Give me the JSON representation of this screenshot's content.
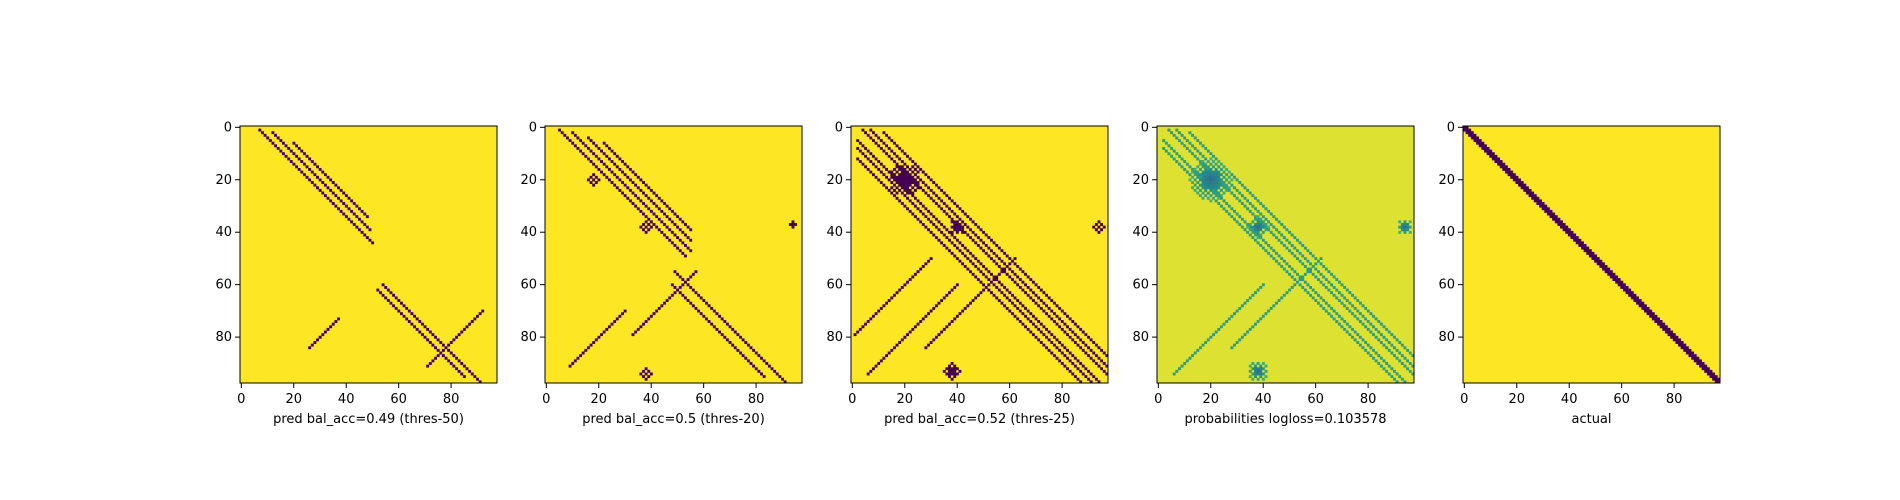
{
  "figure": {
    "background": "#ffffff",
    "colormap": "viridis",
    "color_low": "#440154",
    "color_high": "#fde725"
  },
  "chart_data": [
    {
      "type": "heatmap",
      "title": "",
      "xlabel": "pred bal_acc=0.49 (thres-50)",
      "ylabel": "",
      "size": 98,
      "xticks": [
        0,
        20,
        40,
        60,
        80
      ],
      "yticks": [
        0,
        20,
        40,
        60,
        80
      ],
      "mode": "binary",
      "background_value": 1,
      "diagonal_bands": [
        {
          "offset": 6,
          "from": 1,
          "to": 45
        },
        {
          "offset": 10,
          "from": 2,
          "to": 40
        },
        {
          "offset": 14,
          "from": 6,
          "to": 35
        },
        {
          "offset": -6,
          "from": 60,
          "to": 98
        },
        {
          "offset": -10,
          "from": 62,
          "to": 96
        }
      ],
      "anti_diagonal_bands": [
        {
          "sum": 162,
          "from": 70,
          "to": 92
        },
        {
          "sum": 110,
          "from": 73,
          "to": 85
        }
      ],
      "blobs": []
    },
    {
      "type": "heatmap",
      "title": "",
      "xlabel": "pred bal_acc=0.5 (thres-20)",
      "ylabel": "",
      "size": 98,
      "xticks": [
        0,
        20,
        40,
        60,
        80
      ],
      "yticks": [
        0,
        20,
        40,
        60,
        80
      ],
      "mode": "binary",
      "background_value": 1,
      "diagonal_bands": [
        {
          "offset": 4,
          "from": 1,
          "to": 50
        },
        {
          "offset": 8,
          "from": 2,
          "to": 48
        },
        {
          "offset": 12,
          "from": 4,
          "to": 44
        },
        {
          "offset": 16,
          "from": 6,
          "to": 40
        },
        {
          "offset": -6,
          "from": 55,
          "to": 98
        },
        {
          "offset": -12,
          "from": 60,
          "to": 96
        }
      ],
      "anti_diagonal_bands": [
        {
          "sum": 100,
          "from": 70,
          "to": 92
        },
        {
          "sum": 112,
          "from": 55,
          "to": 80
        }
      ],
      "blobs": [
        {
          "cx": 18,
          "cy": 20,
          "r": 2
        },
        {
          "cx": 38,
          "cy": 38,
          "r": 2
        },
        {
          "cx": 94,
          "cy": 37,
          "r": 2
        },
        {
          "cx": 38,
          "cy": 94,
          "r": 2
        }
      ]
    },
    {
      "type": "heatmap",
      "title": "",
      "xlabel": "pred bal_acc=0.52 (thres-25)",
      "ylabel": "",
      "size": 98,
      "xticks": [
        0,
        20,
        40,
        60,
        80
      ],
      "yticks": [
        0,
        20,
        40,
        60,
        80
      ],
      "mode": "binary",
      "background_value": 1,
      "diagonal_bands": [
        {
          "offset": 3,
          "from": 1,
          "to": 95
        },
        {
          "offset": 6,
          "from": 1,
          "to": 92
        },
        {
          "offset": 10,
          "from": 2,
          "to": 88
        },
        {
          "offset": -3,
          "from": 5,
          "to": 98
        },
        {
          "offset": -6,
          "from": 8,
          "to": 98
        },
        {
          "offset": -10,
          "from": 12,
          "to": 98
        }
      ],
      "anti_diagonal_bands": [
        {
          "sum": 100,
          "from": 60,
          "to": 95
        },
        {
          "sum": 112,
          "from": 50,
          "to": 85
        },
        {
          "sum": 80,
          "from": 50,
          "to": 80
        }
      ],
      "blobs": [
        {
          "cx": 20,
          "cy": 20,
          "r": 6
        },
        {
          "cx": 40,
          "cy": 38,
          "r": 3
        },
        {
          "cx": 94,
          "cy": 38,
          "r": 2
        },
        {
          "cx": 38,
          "cy": 93,
          "r": 3
        }
      ]
    },
    {
      "type": "heatmap",
      "title": "",
      "xlabel": "probabilities logloss=0.103578",
      "ylabel": "",
      "size": 98,
      "xticks": [
        0,
        20,
        40,
        60,
        80
      ],
      "yticks": [
        0,
        20,
        40,
        60,
        80
      ],
      "mode": "continuous",
      "background_value": 0.95,
      "diagonal_bands": [
        {
          "offset": 3,
          "from": 1,
          "to": 95
        },
        {
          "offset": 6,
          "from": 1,
          "to": 92
        },
        {
          "offset": 10,
          "from": 2,
          "to": 88
        },
        {
          "offset": -3,
          "from": 5,
          "to": 98
        },
        {
          "offset": -6,
          "from": 8,
          "to": 98
        }
      ],
      "anti_diagonal_bands": [
        {
          "sum": 100,
          "from": 60,
          "to": 95
        },
        {
          "sum": 112,
          "from": 50,
          "to": 85
        }
      ],
      "blobs": [
        {
          "cx": 20,
          "cy": 20,
          "r": 8
        },
        {
          "cx": 38,
          "cy": 38,
          "r": 4
        },
        {
          "cx": 94,
          "cy": 38,
          "r": 3
        },
        {
          "cx": 38,
          "cy": 93,
          "r": 4
        }
      ]
    },
    {
      "type": "heatmap",
      "title": "",
      "xlabel": "actual",
      "ylabel": "",
      "size": 98,
      "xticks": [
        0,
        20,
        40,
        60,
        80
      ],
      "yticks": [
        0,
        20,
        40,
        60,
        80
      ],
      "mode": "binary",
      "background_value": 1,
      "diagonal_bands": [
        {
          "offset": 0,
          "from": 0,
          "to": 98
        },
        {
          "offset": 1,
          "from": 0,
          "to": 97
        },
        {
          "offset": -1,
          "from": 1,
          "to": 98
        }
      ],
      "anti_diagonal_bands": [],
      "blobs": []
    }
  ]
}
